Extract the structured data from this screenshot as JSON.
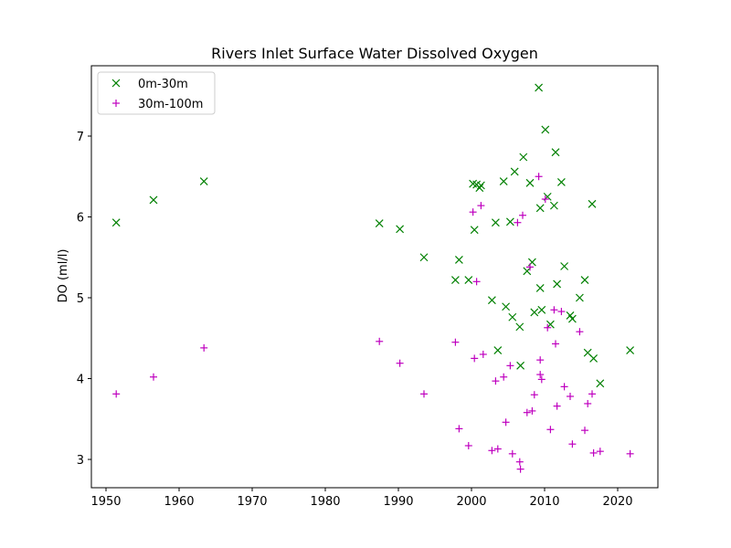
{
  "chart_data": {
    "type": "scatter",
    "title": "Rivers Inlet Surface Water Dissolved Oxygen",
    "xlabel": "",
    "ylabel": "DO (ml/l)",
    "xlim": [
      1948,
      2025.5
    ],
    "ylim": [
      2.65,
      7.87
    ],
    "x_ticks": [
      1950,
      1960,
      1970,
      1980,
      1990,
      2000,
      2010,
      2020
    ],
    "y_ticks": [
      3,
      4,
      5,
      6,
      7
    ],
    "grid": false,
    "legend_position": "upper-left",
    "series": [
      {
        "name": "0m-30m",
        "marker": "x",
        "color": "#008000",
        "points": [
          [
            1951.4,
            5.93
          ],
          [
            1956.5,
            6.21
          ],
          [
            1963.4,
            6.44
          ],
          [
            1987.4,
            5.92
          ],
          [
            1990.2,
            5.85
          ],
          [
            1993.5,
            5.5
          ],
          [
            1997.8,
            5.22
          ],
          [
            1998.3,
            5.47
          ],
          [
            1999.6,
            5.22
          ],
          [
            2000.2,
            6.41
          ],
          [
            2000.4,
            5.84
          ],
          [
            2000.7,
            6.4
          ],
          [
            2001.3,
            6.39
          ],
          [
            2001.1,
            6.36
          ],
          [
            2002.8,
            4.97
          ],
          [
            2003.3,
            5.93
          ],
          [
            2003.6,
            4.35
          ],
          [
            2004.4,
            6.44
          ],
          [
            2004.7,
            4.89
          ],
          [
            2005.3,
            5.94
          ],
          [
            2005.6,
            4.76
          ],
          [
            2005.9,
            6.56
          ],
          [
            2006.6,
            4.64
          ],
          [
            2006.7,
            4.16
          ],
          [
            2007.1,
            6.74
          ],
          [
            2007.6,
            5.33
          ],
          [
            2008.0,
            6.42
          ],
          [
            2008.3,
            5.44
          ],
          [
            2008.6,
            4.82
          ],
          [
            2009.2,
            7.6
          ],
          [
            2009.4,
            6.11
          ],
          [
            2009.4,
            5.12
          ],
          [
            2009.6,
            4.85
          ],
          [
            2010.1,
            7.08
          ],
          [
            2010.4,
            6.25
          ],
          [
            2010.8,
            4.67
          ],
          [
            2011.3,
            6.14
          ],
          [
            2011.5,
            6.8
          ],
          [
            2011.7,
            5.17
          ],
          [
            2012.3,
            6.43
          ],
          [
            2012.7,
            5.39
          ],
          [
            2013.5,
            4.78
          ],
          [
            2013.8,
            4.74
          ],
          [
            2014.8,
            5.0
          ],
          [
            2015.5,
            5.22
          ],
          [
            2015.9,
            4.32
          ],
          [
            2016.5,
            6.16
          ],
          [
            2016.7,
            4.25
          ],
          [
            2017.6,
            3.94
          ],
          [
            2021.7,
            4.35
          ]
        ]
      },
      {
        "name": "30m-100m",
        "marker": "+",
        "color": "#bf00bf",
        "points": [
          [
            1951.4,
            3.81
          ],
          [
            1956.5,
            4.02
          ],
          [
            1963.4,
            4.38
          ],
          [
            1987.4,
            4.46
          ],
          [
            1990.2,
            4.19
          ],
          [
            1993.5,
            3.81
          ],
          [
            1997.8,
            4.45
          ],
          [
            1998.3,
            3.38
          ],
          [
            1999.6,
            3.17
          ],
          [
            2000.2,
            6.06
          ],
          [
            2000.4,
            4.25
          ],
          [
            2000.7,
            5.2
          ],
          [
            2001.3,
            6.14
          ],
          [
            2001.6,
            4.3
          ],
          [
            2002.8,
            3.11
          ],
          [
            2003.3,
            3.97
          ],
          [
            2003.6,
            3.13
          ],
          [
            2004.4,
            4.02
          ],
          [
            2004.7,
            3.46
          ],
          [
            2005.3,
            4.16
          ],
          [
            2005.6,
            3.07
          ],
          [
            2006.3,
            5.93
          ],
          [
            2006.6,
            2.97
          ],
          [
            2006.7,
            2.88
          ],
          [
            2007.0,
            6.02
          ],
          [
            2007.6,
            3.58
          ],
          [
            2008.0,
            5.38
          ],
          [
            2008.3,
            3.6
          ],
          [
            2008.6,
            3.8
          ],
          [
            2009.2,
            6.5
          ],
          [
            2009.4,
            4.23
          ],
          [
            2009.4,
            4.05
          ],
          [
            2009.6,
            3.99
          ],
          [
            2010.1,
            6.22
          ],
          [
            2010.4,
            4.63
          ],
          [
            2010.8,
            3.37
          ],
          [
            2011.3,
            4.85
          ],
          [
            2011.5,
            4.43
          ],
          [
            2011.7,
            3.66
          ],
          [
            2012.3,
            4.83
          ],
          [
            2012.7,
            3.9
          ],
          [
            2013.5,
            3.78
          ],
          [
            2013.8,
            3.19
          ],
          [
            2014.8,
            4.58
          ],
          [
            2015.5,
            3.36
          ],
          [
            2015.9,
            3.69
          ],
          [
            2016.5,
            3.81
          ],
          [
            2016.7,
            3.08
          ],
          [
            2017.6,
            3.1
          ],
          [
            2021.7,
            3.07
          ]
        ]
      }
    ]
  }
}
